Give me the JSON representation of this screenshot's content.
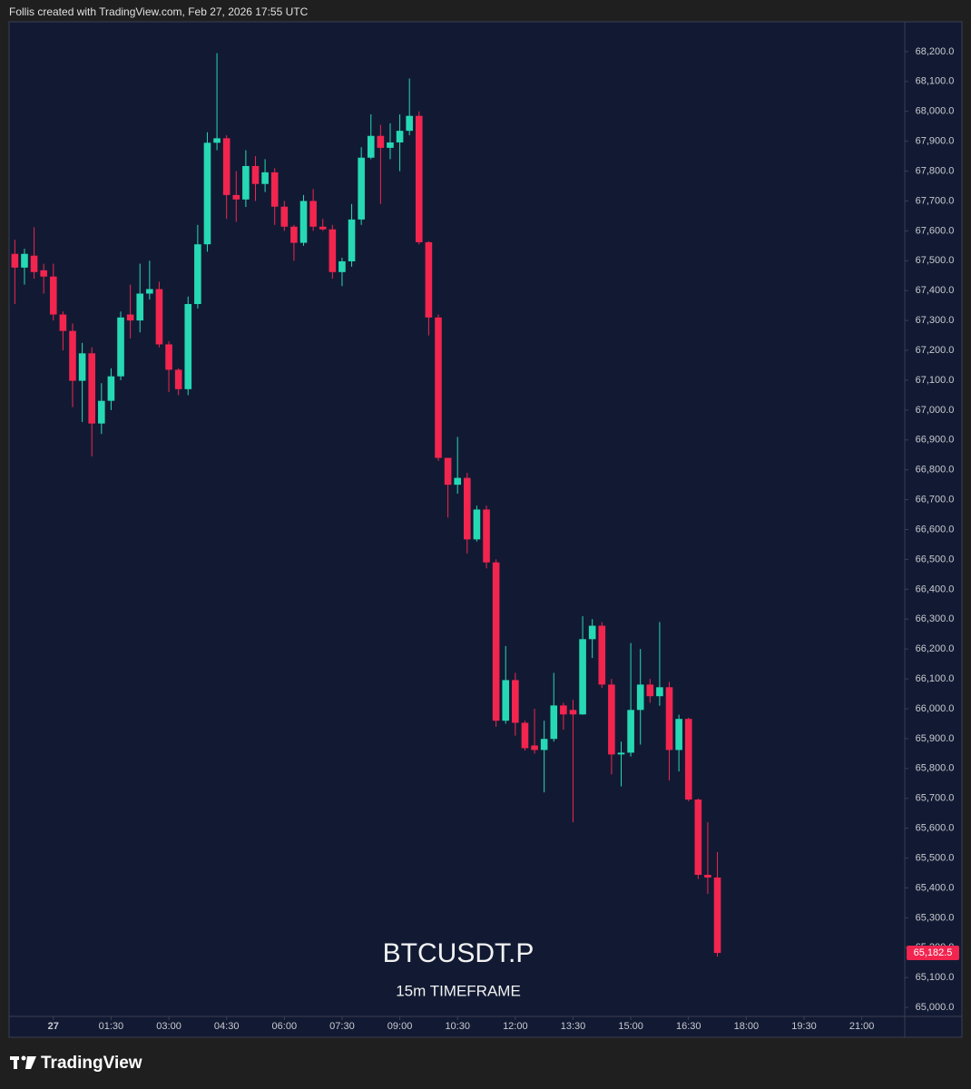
{
  "header": "Follis created with TradingView.com, Feb 27, 2026 17:55 UTC",
  "footer": "TradingView",
  "chart_data": {
    "type": "candlestick",
    "title": "BTCUSDT.P",
    "subtitle": "15m TIMEFRAME",
    "up_color": "#26d9b4",
    "down_color": "#f2254f",
    "x": [
      -60,
      -45,
      -30,
      -15,
      0,
      15,
      30,
      45,
      60,
      75,
      90,
      105,
      120,
      135,
      150,
      165,
      180,
      195,
      210,
      225,
      240,
      255,
      270,
      285,
      300,
      315,
      330,
      345,
      360,
      375,
      390,
      405,
      420,
      435,
      450,
      465,
      480,
      495,
      510,
      525,
      540,
      555,
      570,
      585,
      600,
      615,
      630,
      645,
      660,
      675,
      690,
      705,
      720,
      735,
      750,
      765,
      780,
      795,
      810,
      825,
      840,
      855,
      870,
      885,
      900,
      915,
      930,
      945,
      960,
      975,
      990,
      1005,
      1020,
      1035
    ],
    "open": [
      67523,
      67477,
      67517,
      67468,
      67447,
      67320,
      67265,
      67098,
      67190,
      66955,
      67031,
      67113,
      67320,
      67300,
      67390,
      67405,
      67220,
      67135,
      67070,
      67355,
      67555,
      67895,
      67910,
      67720,
      67705,
      67817,
      67757,
      67796,
      67681,
      67614,
      67560,
      67700,
      67614,
      67605,
      67462,
      67498,
      67638,
      67845,
      67918,
      67878,
      67896,
      67935,
      67985,
      67562,
      67310,
      66840,
      66750,
      66773,
      66567,
      66667,
      66490,
      65960,
      66096,
      65953,
      65877,
      65862,
      65899,
      66011,
      65996,
      65981,
      66233,
      66278,
      66081,
      65847,
      65853,
      65996,
      66081,
      66042,
      66072,
      65862,
      65966,
      65696,
      65444,
      65435
    ],
    "high": [
      67570,
      67540,
      67612,
      67490,
      67490,
      67330,
      67290,
      67225,
      67210,
      67090,
      67140,
      67330,
      67420,
      67490,
      67500,
      67430,
      67230,
      67140,
      67380,
      67620,
      67930,
      68195,
      67920,
      67800,
      67870,
      67850,
      67840,
      67810,
      67700,
      67620,
      67720,
      67740,
      67640,
      67620,
      67510,
      67690,
      67880,
      67990,
      67955,
      67960,
      67990,
      68110,
      68000,
      67565,
      67320,
      66840,
      66910,
      66790,
      66680,
      66680,
      66500,
      66210,
      66120,
      65960,
      66000,
      65960,
      66120,
      66020,
      66030,
      66310,
      66300,
      66290,
      66100,
      65890,
      66220,
      66200,
      66100,
      66290,
      66090,
      65980,
      65970,
      65700,
      65620,
      65520
    ],
    "low": [
      67355,
      67420,
      67440,
      67390,
      67300,
      67200,
      67010,
      66960,
      66845,
      66920,
      67000,
      67100,
      67240,
      67260,
      67370,
      67210,
      67060,
      67050,
      67050,
      67340,
      67530,
      67870,
      67640,
      67630,
      67680,
      67700,
      67730,
      67620,
      67600,
      67500,
      67550,
      67600,
      67600,
      67440,
      67415,
      67480,
      67620,
      67840,
      67690,
      67840,
      67800,
      67920,
      67555,
      67250,
      66830,
      66640,
      66720,
      66520,
      66560,
      66470,
      65940,
      65950,
      65910,
      65860,
      65850,
      65720,
      65890,
      65930,
      65620,
      65980,
      66170,
      66070,
      65780,
      65740,
      65840,
      65880,
      66020,
      66010,
      65760,
      65790,
      65690,
      65430,
      65380,
      65170
    ],
    "close": [
      67477,
      67523,
      67462,
      67447,
      67320,
      67265,
      67098,
      67190,
      66955,
      67031,
      67113,
      67310,
      67300,
      67390,
      67405,
      67220,
      67135,
      67070,
      67355,
      67555,
      67895,
      67910,
      67720,
      67705,
      67817,
      67757,
      67796,
      67681,
      67614,
      67560,
      67700,
      67614,
      67605,
      67462,
      67498,
      67638,
      67845,
      67918,
      67878,
      67896,
      67935,
      67985,
      67562,
      67310,
      66840,
      66750,
      66773,
      66567,
      66667,
      66490,
      65960,
      66096,
      65953,
      65868,
      65862,
      65899,
      66011,
      65981,
      65981,
      66233,
      66278,
      66081,
      65847,
      65853,
      65996,
      66081,
      66042,
      66072,
      65862,
      65966,
      65696,
      65444,
      65435,
      65182.5
    ],
    "last_price": {
      "value": 65182.5,
      "label": "65,182.5"
    },
    "xlim": [
      -69,
      1327
    ],
    "xticks": [
      {
        "value": 0,
        "label": "27"
      },
      {
        "value": 90,
        "label": "01:30"
      },
      {
        "value": 180,
        "label": "03:00"
      },
      {
        "value": 270,
        "label": "04:30"
      },
      {
        "value": 360,
        "label": "06:00"
      },
      {
        "value": 450,
        "label": "07:30"
      },
      {
        "value": 540,
        "label": "09:00"
      },
      {
        "value": 630,
        "label": "10:30"
      },
      {
        "value": 720,
        "label": "12:00"
      },
      {
        "value": 810,
        "label": "13:30"
      },
      {
        "value": 900,
        "label": "15:00"
      },
      {
        "value": 990,
        "label": "16:30"
      },
      {
        "value": 1080,
        "label": "18:00"
      },
      {
        "value": 1170,
        "label": "19:30"
      },
      {
        "value": 1260,
        "label": "21:00"
      }
    ],
    "ylim": [
      64970,
      68300
    ],
    "yticks": [
      {
        "value": 65000,
        "label": "65,000.0"
      },
      {
        "value": 65100,
        "label": "65,100.0"
      },
      {
        "value": 65200,
        "label": "65,200.0"
      },
      {
        "value": 65300,
        "label": "65,300.0"
      },
      {
        "value": 65400,
        "label": "65,400.0"
      },
      {
        "value": 65500,
        "label": "65,500.0"
      },
      {
        "value": 65600,
        "label": "65,600.0"
      },
      {
        "value": 65700,
        "label": "65,700.0"
      },
      {
        "value": 65800,
        "label": "65,800.0"
      },
      {
        "value": 65900,
        "label": "65,900.0"
      },
      {
        "value": 66000,
        "label": "66,000.0"
      },
      {
        "value": 66100,
        "label": "66,100.0"
      },
      {
        "value": 66200,
        "label": "66,200.0"
      },
      {
        "value": 66300,
        "label": "66,300.0"
      },
      {
        "value": 66400,
        "label": "66,400.0"
      },
      {
        "value": 66500,
        "label": "66,500.0"
      },
      {
        "value": 66600,
        "label": "66,600.0"
      },
      {
        "value": 66700,
        "label": "66,700.0"
      },
      {
        "value": 66800,
        "label": "66,800.0"
      },
      {
        "value": 66900,
        "label": "66,900.0"
      },
      {
        "value": 67000,
        "label": "67,000.0"
      },
      {
        "value": 67100,
        "label": "67,100.0"
      },
      {
        "value": 67200,
        "label": "67,200.0"
      },
      {
        "value": 67300,
        "label": "67,300.0"
      },
      {
        "value": 67400,
        "label": "67,400.0"
      },
      {
        "value": 67500,
        "label": "67,500.0"
      },
      {
        "value": 67600,
        "label": "67,600.0"
      },
      {
        "value": 67700,
        "label": "67,700.0"
      },
      {
        "value": 67800,
        "label": "67,800.0"
      },
      {
        "value": 67900,
        "label": "67,900.0"
      },
      {
        "value": 68000,
        "label": "68,000.0"
      },
      {
        "value": 68100,
        "label": "68,100.0"
      },
      {
        "value": 68200,
        "label": "68,200.0"
      }
    ],
    "grid": false
  }
}
